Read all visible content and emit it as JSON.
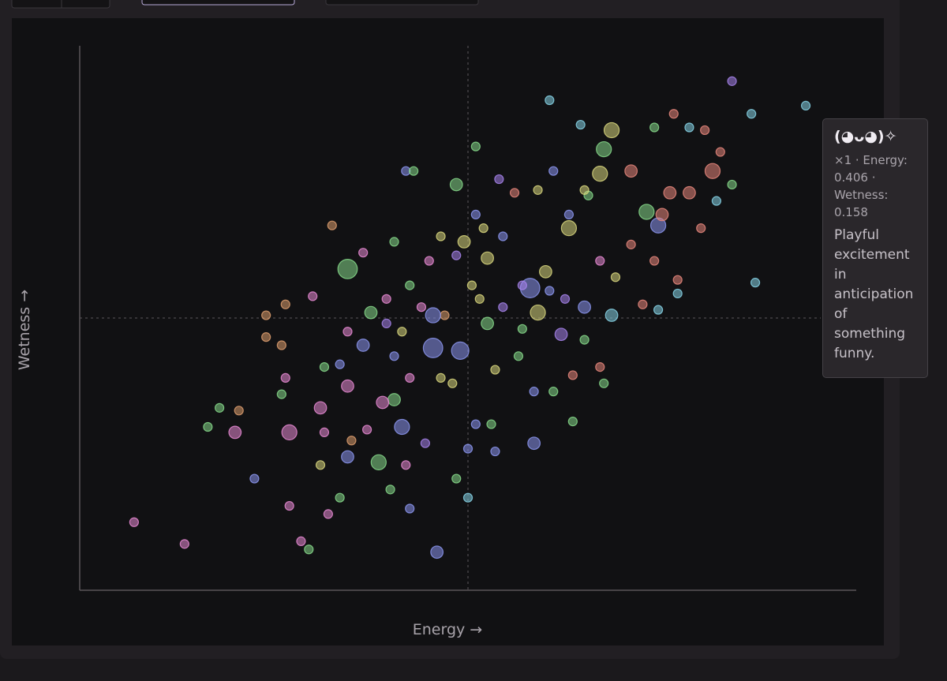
{
  "chart_data": {
    "type": "scatter",
    "x_label": "Energy →",
    "y_label": "Wetness →",
    "xlim": [
      -1,
      1
    ],
    "ylim": [
      -1,
      1
    ],
    "zero_lines": true,
    "x": [
      -0.86,
      -0.73,
      -0.67,
      -0.64,
      -0.6,
      -0.59,
      -0.55,
      -0.52,
      -0.52,
      -0.47,
      -0.4,
      -0.35,
      -0.31,
      -0.48,
      -0.48,
      -0.47,
      -0.46,
      -0.43,
      -0.41,
      -0.46,
      -0.36,
      -0.33,
      -0.38,
      -0.37,
      -0.38,
      -0.31,
      -0.23,
      -0.2,
      -0.15,
      -0.08,
      -0.03,
      0.0,
      0.07,
      0.0,
      0.17,
      0.06,
      0.02,
      -0.17,
      -0.19,
      -0.09,
      -0.02,
      -0.27,
      -0.31,
      -0.22,
      -0.25,
      -0.21,
      -0.15,
      -0.1,
      -0.01,
      0.02,
      0.02,
      -0.03,
      -0.16,
      -0.14,
      0.08,
      0.12,
      0.16,
      0.18,
      0.24,
      0.3,
      0.13,
      0.17,
      0.22,
      0.27,
      0.34,
      0.35,
      0.27,
      0.21,
      0.29,
      0.37,
      0.35,
      0.34,
      0.26,
      0.26,
      0.3,
      0.37,
      0.46,
      0.49,
      0.5,
      0.48,
      0.53,
      0.57,
      0.61,
      0.63,
      0.65,
      0.68,
      0.73,
      0.87,
      0.74,
      0.68,
      0.64,
      0.6,
      0.54,
      0.54,
      0.49,
      0.45,
      0.42,
      0.31,
      0.2,
      0.05,
      0.09,
      0.14,
      0.05,
      0.09,
      -0.06,
      -0.12,
      -0.17,
      -0.19,
      -0.15,
      -0.07,
      -0.04,
      -0.11,
      -0.16,
      -0.26,
      -0.3,
      -0.33,
      -0.37,
      -0.31,
      -0.27,
      -0.19,
      -0.07,
      -0.03,
      0.01,
      0.03,
      0.21,
      0.25,
      0.34,
      0.38,
      0.42,
      0.48,
      0.18,
      0.22,
      0.3,
      0.52,
      0.57,
      0.07,
      0.14,
      -0.09,
      -0.21,
      0.04
    ],
    "y": [
      -0.75,
      -0.83,
      -0.4,
      -0.33,
      -0.42,
      -0.34,
      -0.59,
      -0.07,
      0.01,
      0.05,
      0.08,
      0.34,
      0.18,
      -0.1,
      -0.28,
      -0.22,
      -0.42,
      -0.82,
      -0.85,
      -0.69,
      -0.72,
      -0.66,
      -0.54,
      -0.42,
      -0.33,
      -0.51,
      -0.53,
      -0.63,
      -0.7,
      -0.86,
      -0.59,
      -0.66,
      -0.49,
      -0.48,
      -0.46,
      -0.39,
      -0.39,
      -0.4,
      -0.3,
      -0.11,
      -0.12,
      -0.1,
      -0.25,
      -0.31,
      0.02,
      0.07,
      0.12,
      0.21,
      0.28,
      0.38,
      0.63,
      0.49,
      0.54,
      0.54,
      0.51,
      0.46,
      0.11,
      0.02,
      -0.06,
      -0.08,
      -0.14,
      -0.27,
      -0.27,
      -0.21,
      -0.18,
      -0.24,
      -0.38,
      0.8,
      0.71,
      0.69,
      0.62,
      0.53,
      0.33,
      0.38,
      0.04,
      0.01,
      0.39,
      0.34,
      0.38,
      0.7,
      0.75,
      0.7,
      0.69,
      0.54,
      0.61,
      0.87,
      0.75,
      0.78,
      0.13,
      0.49,
      0.43,
      0.33,
      0.09,
      0.14,
      0.03,
      0.05,
      0.54,
      0.45,
      0.17,
      0.22,
      0.3,
      0.12,
      -0.02,
      0.04,
      0.01,
      0.04,
      -0.05,
      -0.14,
      -0.22,
      -0.22,
      -0.24,
      -0.46,
      -0.54,
      -0.41,
      -0.45,
      -0.17,
      -0.18,
      -0.05,
      0.24,
      0.28,
      0.3,
      0.23,
      0.12,
      0.07,
      0.1,
      0.07,
      0.21,
      0.15,
      0.27,
      0.21,
      0.47,
      0.54,
      0.47,
      0.46,
      0.46,
      -0.19,
      -0.04,
      0.01,
      -0.02,
      0.33
    ],
    "sizes": [
      1,
      1,
      1,
      1,
      2,
      1,
      1,
      1,
      1,
      1,
      1,
      1,
      5,
      1,
      1,
      1,
      3,
      1,
      1,
      1,
      1,
      1,
      1,
      1,
      2,
      2,
      3,
      1,
      1,
      2,
      1,
      1,
      1,
      1,
      2,
      1,
      1,
      3,
      2,
      5,
      4,
      2,
      2,
      2,
      2,
      1,
      1,
      1,
      2,
      1,
      1,
      2,
      1,
      1,
      1,
      1,
      5,
      3,
      2,
      1,
      1,
      1,
      1,
      1,
      1,
      1,
      1,
      1,
      1,
      3,
      3,
      3,
      3,
      1,
      2,
      2,
      3,
      3,
      2,
      1,
      1,
      1,
      1,
      3,
      1,
      1,
      1,
      1,
      1,
      1,
      1,
      1,
      1,
      1,
      1,
      1,
      2,
      1,
      2,
      2,
      1,
      1,
      2,
      1,
      1,
      1,
      1,
      1,
      1,
      1,
      1,
      1,
      1,
      1,
      1,
      1,
      1,
      1,
      1,
      1,
      1,
      1,
      1,
      1,
      1,
      1,
      1,
      1,
      1,
      1,
      1,
      1,
      1,
      2,
      2,
      1,
      1,
      3,
      1,
      1
    ],
    "colors": [
      "#e78ad4",
      "#e78ad4",
      "#86d98a",
      "#86d98a",
      "#e78ad4",
      "#dd9e6e",
      "#8c96f0",
      "#dd9e6e",
      "#dd9e6e",
      "#dd9e6e",
      "#e78ad4",
      "#dd9e6e",
      "#86d98a",
      "#dd9e6e",
      "#86d98a",
      "#e78ad4",
      "#e78ad4",
      "#e78ad4",
      "#86d98a",
      "#e78ad4",
      "#e78ad4",
      "#86d98a",
      "#d9d77e",
      "#e78ad4",
      "#e78ad4",
      "#8c96f0",
      "#86d98a",
      "#86d98a",
      "#8c96f0",
      "#8c96f0",
      "#86d98a",
      "#86d3e6",
      "#8c96f0",
      "#8c96f0",
      "#8c96f0",
      "#86d98a",
      "#8c96f0",
      "#8c96f0",
      "#86d98a",
      "#8c96f0",
      "#8c96f0",
      "#8c96f0",
      "#e78ad4",
      "#e78ad4",
      "#86d98a",
      "#e78ad4",
      "#86d98a",
      "#e78ad4",
      "#d9d77e",
      "#8c96f0",
      "#86d98a",
      "#86d98a",
      "#8c96f0",
      "#86d98a",
      "#a784ec",
      "#e8877c",
      "#8c96f0",
      "#d9d77e",
      "#a784ec",
      "#86d98a",
      "#86d98a",
      "#8c96f0",
      "#86d98a",
      "#e8877c",
      "#e8877c",
      "#86d98a",
      "#86d98a",
      "#86d3e6",
      "#86d3e6",
      "#d9d77e",
      "#86d98a",
      "#d9d77e",
      "#d9d77e",
      "#8c96f0",
      "#8c96f0",
      "#86d3e6",
      "#86d98a",
      "#8c96f0",
      "#e8877c",
      "#86d98a",
      "#e8877c",
      "#86d3e6",
      "#e8877c",
      "#e8877c",
      "#e8877c",
      "#a784ec",
      "#86d3e6",
      "#86d3e6",
      "#86d3e6",
      "#86d98a",
      "#86d3e6",
      "#e8877c",
      "#86d3e6",
      "#e8877c",
      "#86d3e6",
      "#e8877c",
      "#e8877c",
      "#86d98a",
      "#d9d77e",
      "#d9d77e",
      "#8c96f0",
      "#a784ec",
      "#86d98a",
      "#a784ec",
      "#dd9e6e",
      "#e78ad4",
      "#d9d77e",
      "#8c96f0",
      "#e78ad4",
      "#d9d77e",
      "#d9d77e",
      "#a784ec",
      "#e78ad4",
      "#e78ad4",
      "#dd9e6e",
      "#8c96f0",
      "#86d98a",
      "#e78ad4",
      "#e78ad4",
      "#86d98a",
      "#d9d77e",
      "#a784ec",
      "#d9d77e",
      "#d9d77e",
      "#8c96f0",
      "#a784ec",
      "#e78ad4",
      "#d9d77e",
      "#e8877c",
      "#e8877c",
      "#d9d77e",
      "#8c96f0",
      "#d9d77e",
      "#e8877c",
      "#e8877c",
      "#d9d77e",
      "#86d98a",
      "#8c96f0",
      "#a784ec",
      "#d9d77e"
    ]
  },
  "tooltip": {
    "title": "(◕ᴗ◕)✧",
    "meta": "×1 · Energy: 0.406 · Wetness: 0.158",
    "description": "Playful excitement in anticipation of something funny."
  }
}
